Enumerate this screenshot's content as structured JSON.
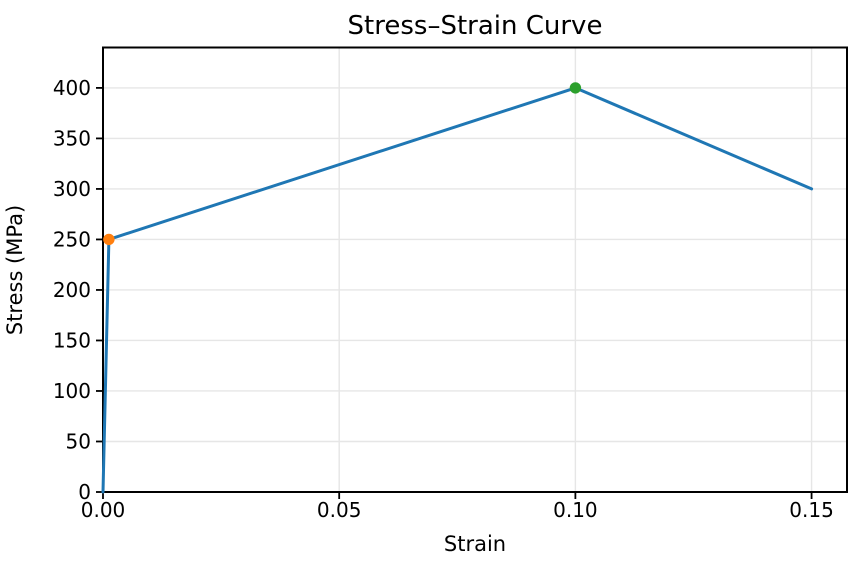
{
  "chart_data": {
    "type": "line",
    "title": "Stress–Strain Curve",
    "xlabel": "Strain",
    "ylabel": "Stress (MPa)",
    "x": [
      0,
      0.00125,
      0.1,
      0.15
    ],
    "y": [
      0,
      250,
      400,
      300
    ],
    "xlim": [
      0,
      0.1575
    ],
    "ylim": [
      0,
      440
    ],
    "xticks": [
      0,
      0.05,
      0.1,
      0.15
    ],
    "xtick_labels": [
      "0.00",
      "0.05",
      "0.10",
      "0.15"
    ],
    "yticks": [
      0,
      50,
      100,
      150,
      200,
      250,
      300,
      350,
      400
    ],
    "ytick_labels": [
      "0",
      "50",
      "100",
      "150",
      "200",
      "250",
      "300",
      "350",
      "400"
    ],
    "grid": true,
    "legend_position": "none",
    "line_color": "#1f77b4",
    "grid_color": "#e6e6e6",
    "spine_color": "#000000",
    "background": "#ffffff",
    "markers": [
      {
        "x": 0.00125,
        "y": 250,
        "color": "#ff7f0e",
        "name": "yield-point"
      },
      {
        "x": 0.1,
        "y": 400,
        "color": "#2ca02c",
        "name": "ultimate-tensile-point"
      }
    ]
  }
}
